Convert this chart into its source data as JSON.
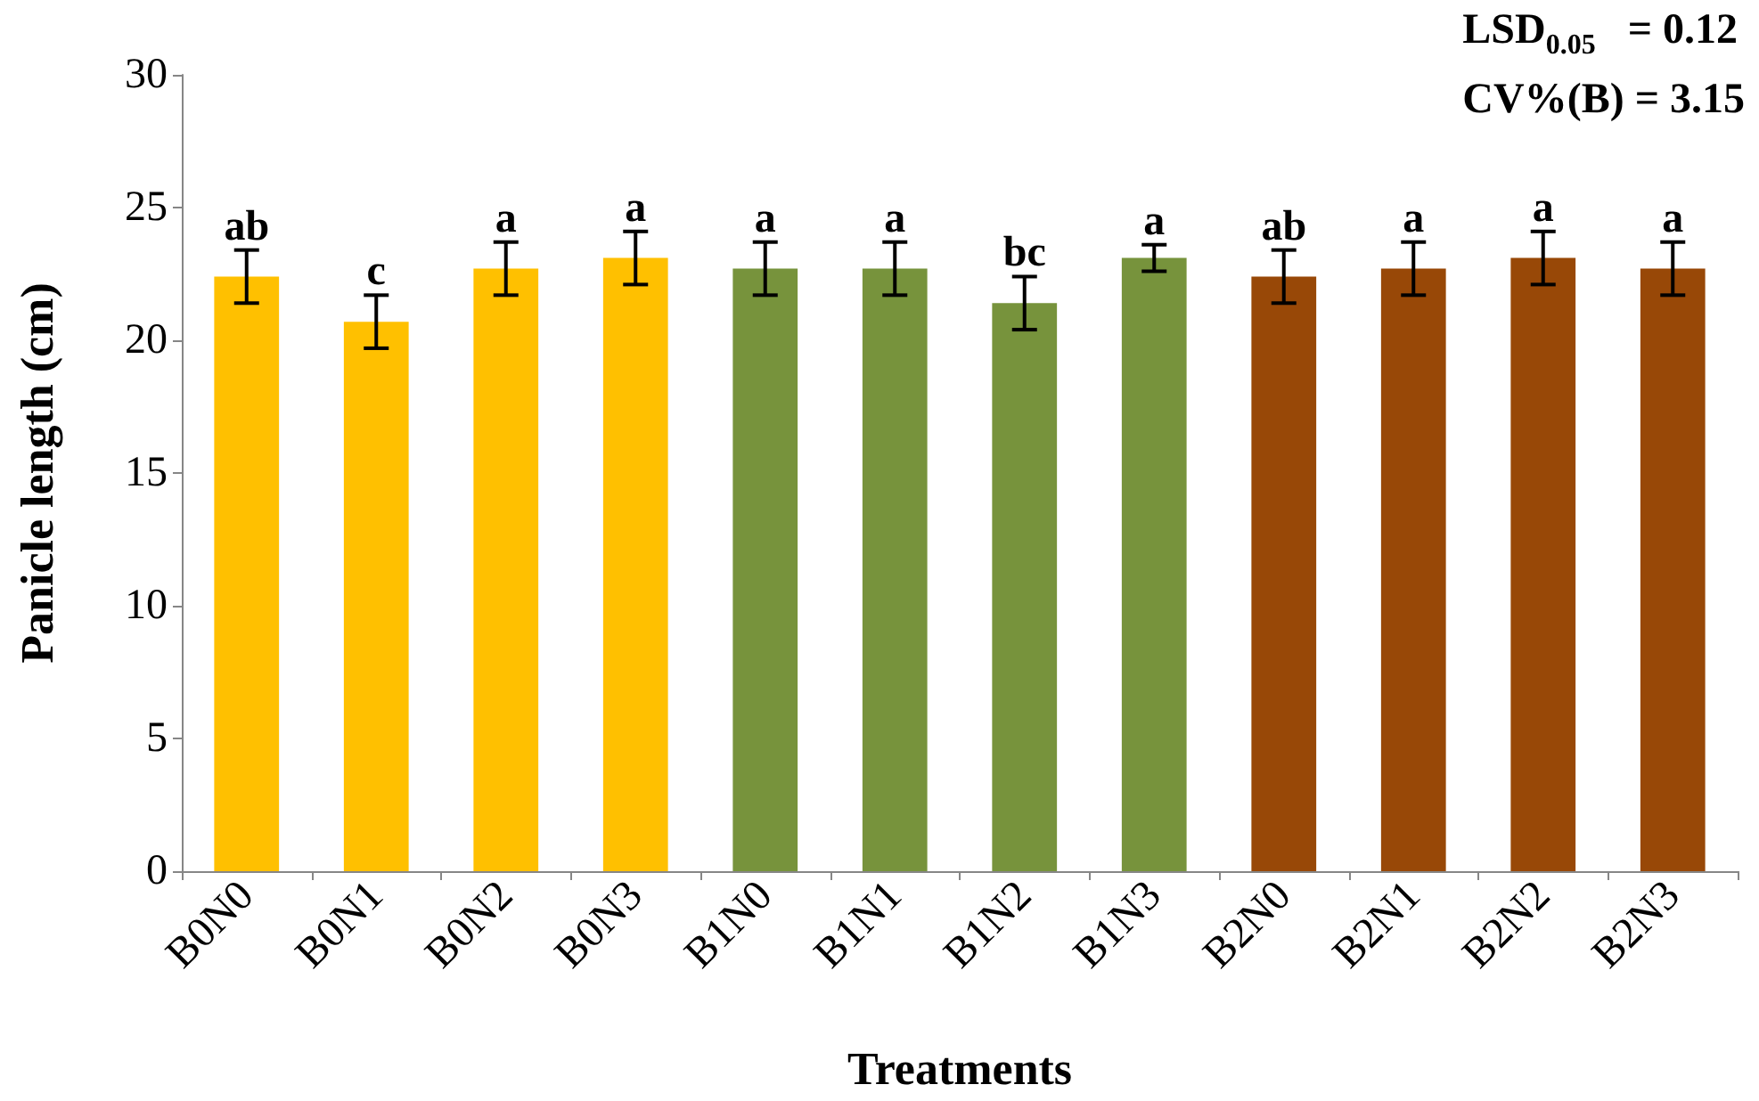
{
  "chart_data": {
    "type": "bar",
    "xlabel": "Treatments",
    "ylabel": "Panicle length (cm)",
    "categories": [
      "B0N0",
      "B0N1",
      "B0N2",
      "B0N3",
      "B1N0",
      "B1N1",
      "B1N2",
      "B1N3",
      "B2N0",
      "B2N1",
      "B2N2",
      "B2N3"
    ],
    "values": [
      22.4,
      20.7,
      22.7,
      23.1,
      22.7,
      22.7,
      21.4,
      23.1,
      22.4,
      22.7,
      23.1,
      22.7
    ],
    "errors": [
      1.0,
      1.0,
      1.0,
      1.0,
      1.0,
      1.0,
      1.0,
      0.5,
      1.0,
      1.0,
      1.0,
      1.0
    ],
    "value_labels": [
      "ab",
      "c",
      "a",
      "a",
      "a",
      "a",
      "bc",
      "a",
      "ab",
      "a",
      "a",
      "a"
    ],
    "colors": [
      "#ffc000",
      "#ffc000",
      "#ffc000",
      "#ffc000",
      "#77933c",
      "#77933c",
      "#77933c",
      "#77933c",
      "#984807",
      "#984807",
      "#984807",
      "#984807"
    ],
    "ylim": [
      0,
      30
    ],
    "yticks": [
      0,
      5,
      10,
      15,
      20,
      25,
      30
    ],
    "grid": false,
    "annotations": [
      "LSD$_{0.05}$   = 0.12",
      "CV%(B) = 3.15"
    ]
  }
}
